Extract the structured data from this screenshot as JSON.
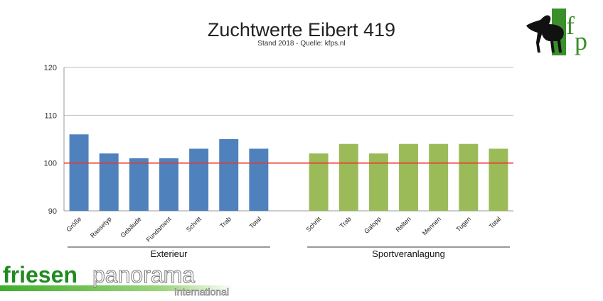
{
  "chart_data": {
    "type": "bar",
    "title": "Zuchtwerte Eibert 419",
    "subtitle": "Stand 2018 - Quelle: kfps.nl",
    "ylim": [
      90,
      120
    ],
    "yticks": [
      90,
      100,
      110,
      120
    ],
    "reference_line": 100,
    "reference_color": "#e8382a",
    "grid": true,
    "groups": [
      {
        "name": "Exterieur",
        "color": "#4f81bd",
        "categories": [
          "Größe",
          "Rassetyp",
          "Gebäude",
          "Fundament",
          "Schritt",
          "Trab",
          "Total"
        ],
        "values": [
          106,
          102,
          101,
          101,
          103,
          105,
          103
        ]
      },
      {
        "name": "Sportveranlagung",
        "color": "#9bbb59",
        "categories": [
          "Schritt",
          "Trab",
          "Galopp",
          "Reiten",
          "Mennen",
          "Tugen",
          "Total"
        ],
        "values": [
          102,
          104,
          102,
          104,
          104,
          104,
          103
        ]
      }
    ]
  },
  "logos": {
    "kfp_text": "kfp",
    "brand_word1": "friesen",
    "brand_word2": "panorama",
    "brand_sub": "International"
  }
}
